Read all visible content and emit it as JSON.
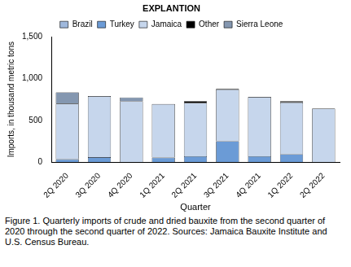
{
  "chart_data": {
    "type": "bar",
    "stacked": true,
    "categories": [
      "2Q 2020",
      "3Q 2020",
      "4Q 2020",
      "1Q 2021",
      "2Q 2021",
      "3Q 2021",
      "4Q 2021",
      "1Q 2022",
      "2Q 2022"
    ],
    "series": [
      {
        "name": "Brazil",
        "color": "#9fb8dc",
        "values": [
          0,
          0,
          0,
          0,
          0,
          0,
          0,
          0,
          0
        ]
      },
      {
        "name": "Turkey",
        "color": "#6b9bd6",
        "values": [
          35,
          60,
          0,
          55,
          70,
          250,
          70,
          95,
          0
        ]
      },
      {
        "name": "Jamaica",
        "color": "#c6d6ec",
        "values": [
          665,
          730,
          730,
          640,
          640,
          620,
          710,
          620,
          640
        ]
      },
      {
        "name": "Other",
        "color": "#000000",
        "values": [
          0,
          0,
          0,
          0,
          20,
          10,
          0,
          15,
          5
        ]
      },
      {
        "name": "Sierra Leone",
        "color": "#8497b0",
        "values": [
          135,
          0,
          45,
          0,
          0,
          0,
          0,
          0,
          0
        ]
      }
    ],
    "y_label": "Imports, in thousand metric tons",
    "x_label": "Quarter",
    "legend_title": "EXPLANTION",
    "legend": "top",
    "ylim": [
      0,
      1500
    ],
    "yticks": [
      0,
      500,
      {
        "value": 1000,
        "label": "1,000"
      },
      {
        "value": 1500,
        "label": "1,500"
      }
    ],
    "grid": false,
    "caption": "Figure 1. Quarterly imports of crude and dried bauxite from the second quarter of 2020 through the second quarter of 2022. Sources: Jamaica Bauxite Institute and U.S. Census Bureau."
  }
}
